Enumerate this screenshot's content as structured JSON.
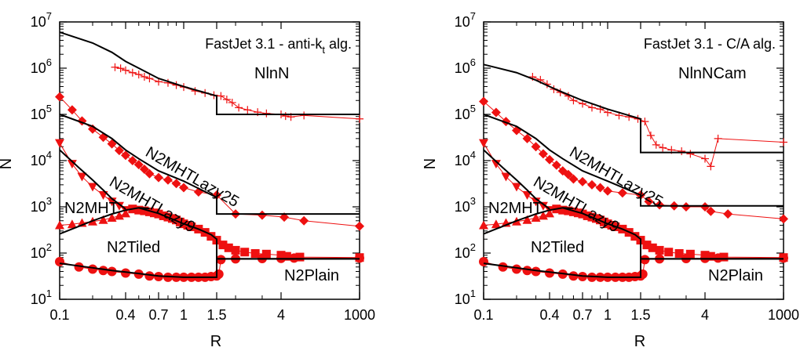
{
  "chart_data": [
    {
      "type": "line",
      "title": "FastJet 3.1 - anti-kt alg.",
      "title_main": "FastJet 3.1 - anti-k",
      "title_sub": "t",
      "title_end": " alg.",
      "xlabel": "R",
      "ylabel": "N",
      "xscale": "log",
      "yscale": "log",
      "ylim": [
        10,
        10000000
      ],
      "x_tick_labels": [
        "0.1",
        "0.4",
        "0.7",
        "1",
        "1.5",
        "4",
        "1000"
      ],
      "y_tick_labels": [
        "10^1",
        "10^2",
        "10^3",
        "10^4",
        "10^5",
        "10^6",
        "10^7"
      ],
      "legend": "none",
      "curve_labels": [
        "NlnN",
        "N2MHTLazy25",
        "N2MHTLazy9",
        "N2MHT",
        "N2Tiled",
        "N2Plain"
      ],
      "series": [
        {
          "name": "NlnN",
          "marker": "plus",
          "x": [
            0.32,
            0.36,
            0.4,
            0.45,
            0.5,
            0.55,
            0.6,
            0.7,
            0.8,
            0.9,
            1.0,
            1.15,
            1.3,
            1.45,
            1.6,
            1.75,
            1.9,
            2.1,
            2.4,
            2.8,
            3.2,
            4.0,
            5.5,
            8.0,
            20.0,
            1000
          ],
          "y": [
            1050000,
            990000,
            900000,
            800000,
            730000,
            650000,
            600000,
            510000,
            480000,
            430000,
            390000,
            320000,
            290000,
            260000,
            250000,
            210000,
            180000,
            140000,
            125000,
            112000,
            105000,
            100000,
            92000,
            88000,
            95000,
            80000
          ]
        },
        {
          "name": "N2MHTLazy25",
          "marker": "diamond",
          "x": [
            0.1,
            0.13,
            0.16,
            0.2,
            0.25,
            0.3,
            0.35,
            0.4,
            0.45,
            0.5,
            0.55,
            0.6,
            0.7,
            0.8,
            0.9,
            1.0,
            1.2,
            1.5,
            2.0,
            3.0,
            5.0,
            20.0,
            1000
          ],
          "y": [
            240000,
            125000,
            72000,
            48000,
            32000,
            23000,
            16500,
            13000,
            10000,
            8200,
            6500,
            5200,
            4300,
            3800,
            3200,
            2600,
            2100,
            1800,
            700,
            660,
            600,
            500,
            380
          ]
        },
        {
          "name": "N2MHTLazy9",
          "marker": "triangle-down",
          "x": [
            0.1,
            0.13,
            0.16,
            0.2,
            0.25,
            0.3,
            0.35,
            0.4
          ],
          "y": [
            24000,
            8500,
            4500,
            2700,
            1800,
            1300,
            1050,
            850
          ]
        },
        {
          "name": "N2MHT",
          "marker": "triangle-up",
          "x": [
            0.1,
            0.13,
            0.16,
            0.2,
            0.25,
            0.3,
            0.35,
            0.4
          ],
          "y": [
            400,
            420,
            450,
            480,
            520,
            580,
            640,
            720
          ]
        },
        {
          "name": "N2Tiled",
          "marker": "square",
          "x": [
            0.45,
            0.5,
            0.55,
            0.6,
            0.65,
            0.7,
            0.75,
            0.8,
            0.85,
            0.9,
            0.95,
            1.0,
            1.05,
            1.1,
            1.2,
            1.3,
            1.4,
            1.5,
            1.65,
            1.8,
            2.0,
            2.3,
            2.7,
            3.2,
            4.0,
            6.0,
            15.0,
            1000
          ],
          "y": [
            900,
            850,
            820,
            780,
            740,
            700,
            640,
            600,
            560,
            520,
            470,
            430,
            400,
            370,
            330,
            280,
            230,
            190,
            150,
            130,
            115,
            105,
            98,
            95,
            90,
            85,
            82,
            80
          ]
        },
        {
          "name": "N2Plain",
          "marker": "circle",
          "x": [
            0.1,
            0.15,
            0.2,
            0.25,
            0.3,
            0.4,
            0.5,
            0.6,
            0.7,
            0.8,
            0.9,
            1.0,
            1.1,
            1.2,
            1.3,
            1.4,
            1.5,
            1.55,
            1.6,
            2.0,
            3.0,
            4.0,
            10.0,
            1000
          ],
          "y": [
            65,
            50,
            45,
            42,
            40,
            37,
            35,
            32,
            31,
            30,
            30,
            30,
            30,
            30,
            30,
            31,
            32,
            35,
            72,
            75,
            76,
            77,
            78,
            78
          ]
        },
        {
          "name": "",
          "style": "fit-line",
          "x": [
            0.1,
            0.2,
            0.3,
            0.4,
            0.5,
            0.7,
            1.0,
            1.5,
            1.5,
            1000
          ],
          "y": [
            6000000,
            3500000,
            2200000,
            1400000,
            1000000,
            600000,
            400000,
            250000,
            100000,
            100000
          ]
        },
        {
          "name": "",
          "style": "fit-line",
          "x": [
            0.1,
            0.2,
            0.3,
            0.4,
            0.5,
            0.7,
            1.0,
            1.5,
            1.5,
            1000
          ],
          "y": [
            100000,
            55000,
            30000,
            17000,
            11000,
            6000,
            3600,
            1600,
            700,
            700
          ]
        },
        {
          "name": "",
          "style": "fit-line",
          "x": [
            0.1,
            0.15,
            0.2,
            0.25,
            0.3,
            0.4
          ],
          "y": [
            17000,
            7000,
            3800,
            2300,
            1500,
            900
          ]
        },
        {
          "name": "",
          "style": "fit-line",
          "x": [
            0.1,
            0.15,
            0.2,
            0.3,
            0.4,
            0.5,
            0.6
          ],
          "y": [
            260,
            380,
            500,
            700,
            850,
            950,
            920
          ]
        },
        {
          "name": "",
          "style": "fit-line",
          "x": [
            0.5,
            0.7,
            1.0,
            1.2,
            1.4,
            1.5,
            1.5,
            1000
          ],
          "y": [
            950,
            720,
            430,
            330,
            250,
            200,
            75,
            75
          ]
        },
        {
          "name": "",
          "style": "fit-line",
          "x": [
            0.1,
            0.2,
            0.3,
            0.5,
            0.7,
            1.0,
            1.2,
            1.5,
            1.5,
            1000
          ],
          "y": [
            60,
            48,
            42,
            36,
            32,
            30,
            30,
            30,
            75,
            75
          ]
        }
      ]
    },
    {
      "type": "line",
      "title": "FastJet 3.1 - C/A alg.",
      "title_main": "FastJet 3.1 - C/A alg.",
      "title_sub": "",
      "title_end": "",
      "xlabel": "R",
      "ylabel": "N",
      "xscale": "log",
      "yscale": "log",
      "ylim": [
        10,
        10000000
      ],
      "x_tick_labels": [
        "0.1",
        "0.4",
        "0.7",
        "1",
        "1.5",
        "4",
        "1000"
      ],
      "y_tick_labels": [
        "10^1",
        "10^2",
        "10^3",
        "10^4",
        "10^5",
        "10^6",
        "10^7"
      ],
      "legend": "none",
      "curve_labels": [
        "NlnNCam",
        "N2MHTLazy25",
        "N2MHTLazy9",
        "N2MHT",
        "N2Tiled",
        "N2Plain"
      ],
      "series": [
        {
          "name": "NlnNCam",
          "marker": "plus",
          "x": [
            0.28,
            0.33,
            0.38,
            0.43,
            0.48,
            0.55,
            0.6,
            0.7,
            0.8,
            0.9,
            1.0,
            1.15,
            1.3,
            1.45,
            1.6,
            1.75,
            1.9,
            2.1,
            2.4,
            2.8,
            3.2,
            4.0,
            6.0,
            10.0,
            1000
          ],
          "y": [
            650000,
            560000,
            450000,
            350000,
            300000,
            250000,
            200000,
            170000,
            140000,
            130000,
            110000,
            95000,
            88000,
            80000,
            70000,
            35000,
            22000,
            19000,
            17000,
            16000,
            14000,
            11000,
            7500,
            30000,
            25000
          ]
        },
        {
          "name": "N2MHTLazy25",
          "marker": "diamond",
          "x": [
            0.1,
            0.13,
            0.16,
            0.2,
            0.25,
            0.3,
            0.35,
            0.4,
            0.45,
            0.5,
            0.55,
            0.6,
            0.7,
            0.8,
            0.9,
            1.0,
            1.2,
            1.5,
            1.7,
            2.0,
            2.5,
            3.0,
            4.0,
            6.0,
            20.0,
            1000
          ],
          "y": [
            190000,
            110000,
            70000,
            45000,
            30000,
            20000,
            14000,
            10500,
            8000,
            6000,
            5000,
            4000,
            3500,
            3000,
            2600,
            2200,
            2000,
            1800,
            1300,
            1100,
            1050,
            1000,
            1000,
            800,
            700,
            550
          ]
        },
        {
          "name": "N2MHTLazy9",
          "marker": "triangle-down",
          "x": [
            0.1,
            0.13,
            0.16,
            0.2,
            0.25,
            0.3,
            0.35,
            0.4
          ],
          "y": [
            24000,
            8500,
            4500,
            2700,
            1800,
            1300,
            1050,
            850
          ]
        },
        {
          "name": "N2MHT",
          "marker": "triangle-up",
          "x": [
            0.1,
            0.13,
            0.16,
            0.2,
            0.25,
            0.3,
            0.35,
            0.4
          ],
          "y": [
            400,
            420,
            450,
            480,
            520,
            580,
            640,
            720
          ]
        },
        {
          "name": "N2Tiled",
          "marker": "square",
          "x": [
            0.45,
            0.5,
            0.55,
            0.6,
            0.65,
            0.7,
            0.75,
            0.8,
            0.85,
            0.9,
            0.95,
            1.0,
            1.05,
            1.1,
            1.2,
            1.3,
            1.4,
            1.5,
            1.65,
            1.8,
            2.0,
            2.3,
            2.7,
            3.2,
            4.0,
            6.0,
            15.0,
            1000
          ],
          "y": [
            900,
            850,
            820,
            780,
            740,
            700,
            640,
            600,
            560,
            520,
            470,
            430,
            400,
            370,
            330,
            280,
            230,
            190,
            150,
            130,
            115,
            105,
            98,
            95,
            90,
            85,
            82,
            80
          ]
        },
        {
          "name": "N2Plain",
          "marker": "circle",
          "x": [
            0.1,
            0.15,
            0.2,
            0.25,
            0.3,
            0.4,
            0.5,
            0.6,
            0.7,
            0.8,
            0.9,
            1.0,
            1.1,
            1.2,
            1.3,
            1.4,
            1.5,
            1.55,
            1.6,
            2.0,
            3.0,
            4.0,
            10.0,
            1000
          ],
          "y": [
            65,
            50,
            45,
            42,
            40,
            37,
            35,
            32,
            31,
            30,
            30,
            30,
            30,
            30,
            30,
            31,
            32,
            35,
            72,
            75,
            76,
            77,
            78,
            78
          ]
        },
        {
          "name": "",
          "style": "fit-line",
          "x": [
            0.1,
            0.2,
            0.3,
            0.4,
            0.5,
            0.7,
            1.0,
            1.5,
            1.5,
            1000
          ],
          "y": [
            1200000,
            800000,
            550000,
            400000,
            300000,
            200000,
            130000,
            80000,
            15000,
            15000
          ]
        },
        {
          "name": "",
          "style": "fit-line",
          "x": [
            0.1,
            0.2,
            0.3,
            0.4,
            0.5,
            0.7,
            1.0,
            1.5,
            1.5,
            1000
          ],
          "y": [
            100000,
            55000,
            30000,
            17000,
            11000,
            6000,
            3600,
            1800,
            1050,
            1050
          ]
        },
        {
          "name": "",
          "style": "fit-line",
          "x": [
            0.1,
            0.15,
            0.2,
            0.25,
            0.3,
            0.4
          ],
          "y": [
            17000,
            7000,
            3800,
            2300,
            1500,
            900
          ]
        },
        {
          "name": "",
          "style": "fit-line",
          "x": [
            0.1,
            0.15,
            0.2,
            0.3,
            0.4,
            0.5,
            0.6
          ],
          "y": [
            260,
            380,
            500,
            700,
            850,
            950,
            920
          ]
        },
        {
          "name": "",
          "style": "fit-line",
          "x": [
            0.5,
            0.7,
            1.0,
            1.2,
            1.4,
            1.5,
            1.5,
            1000
          ],
          "y": [
            950,
            720,
            430,
            330,
            250,
            200,
            75,
            75
          ]
        },
        {
          "name": "",
          "style": "fit-line",
          "x": [
            0.1,
            0.2,
            0.3,
            0.5,
            0.7,
            1.0,
            1.2,
            1.5,
            1.5,
            1000
          ],
          "y": [
            60,
            48,
            42,
            36,
            32,
            30,
            30,
            30,
            75,
            75
          ]
        }
      ]
    }
  ],
  "colors": {
    "data": "#ee1111",
    "fit": "#000000",
    "frame": "#000000"
  }
}
